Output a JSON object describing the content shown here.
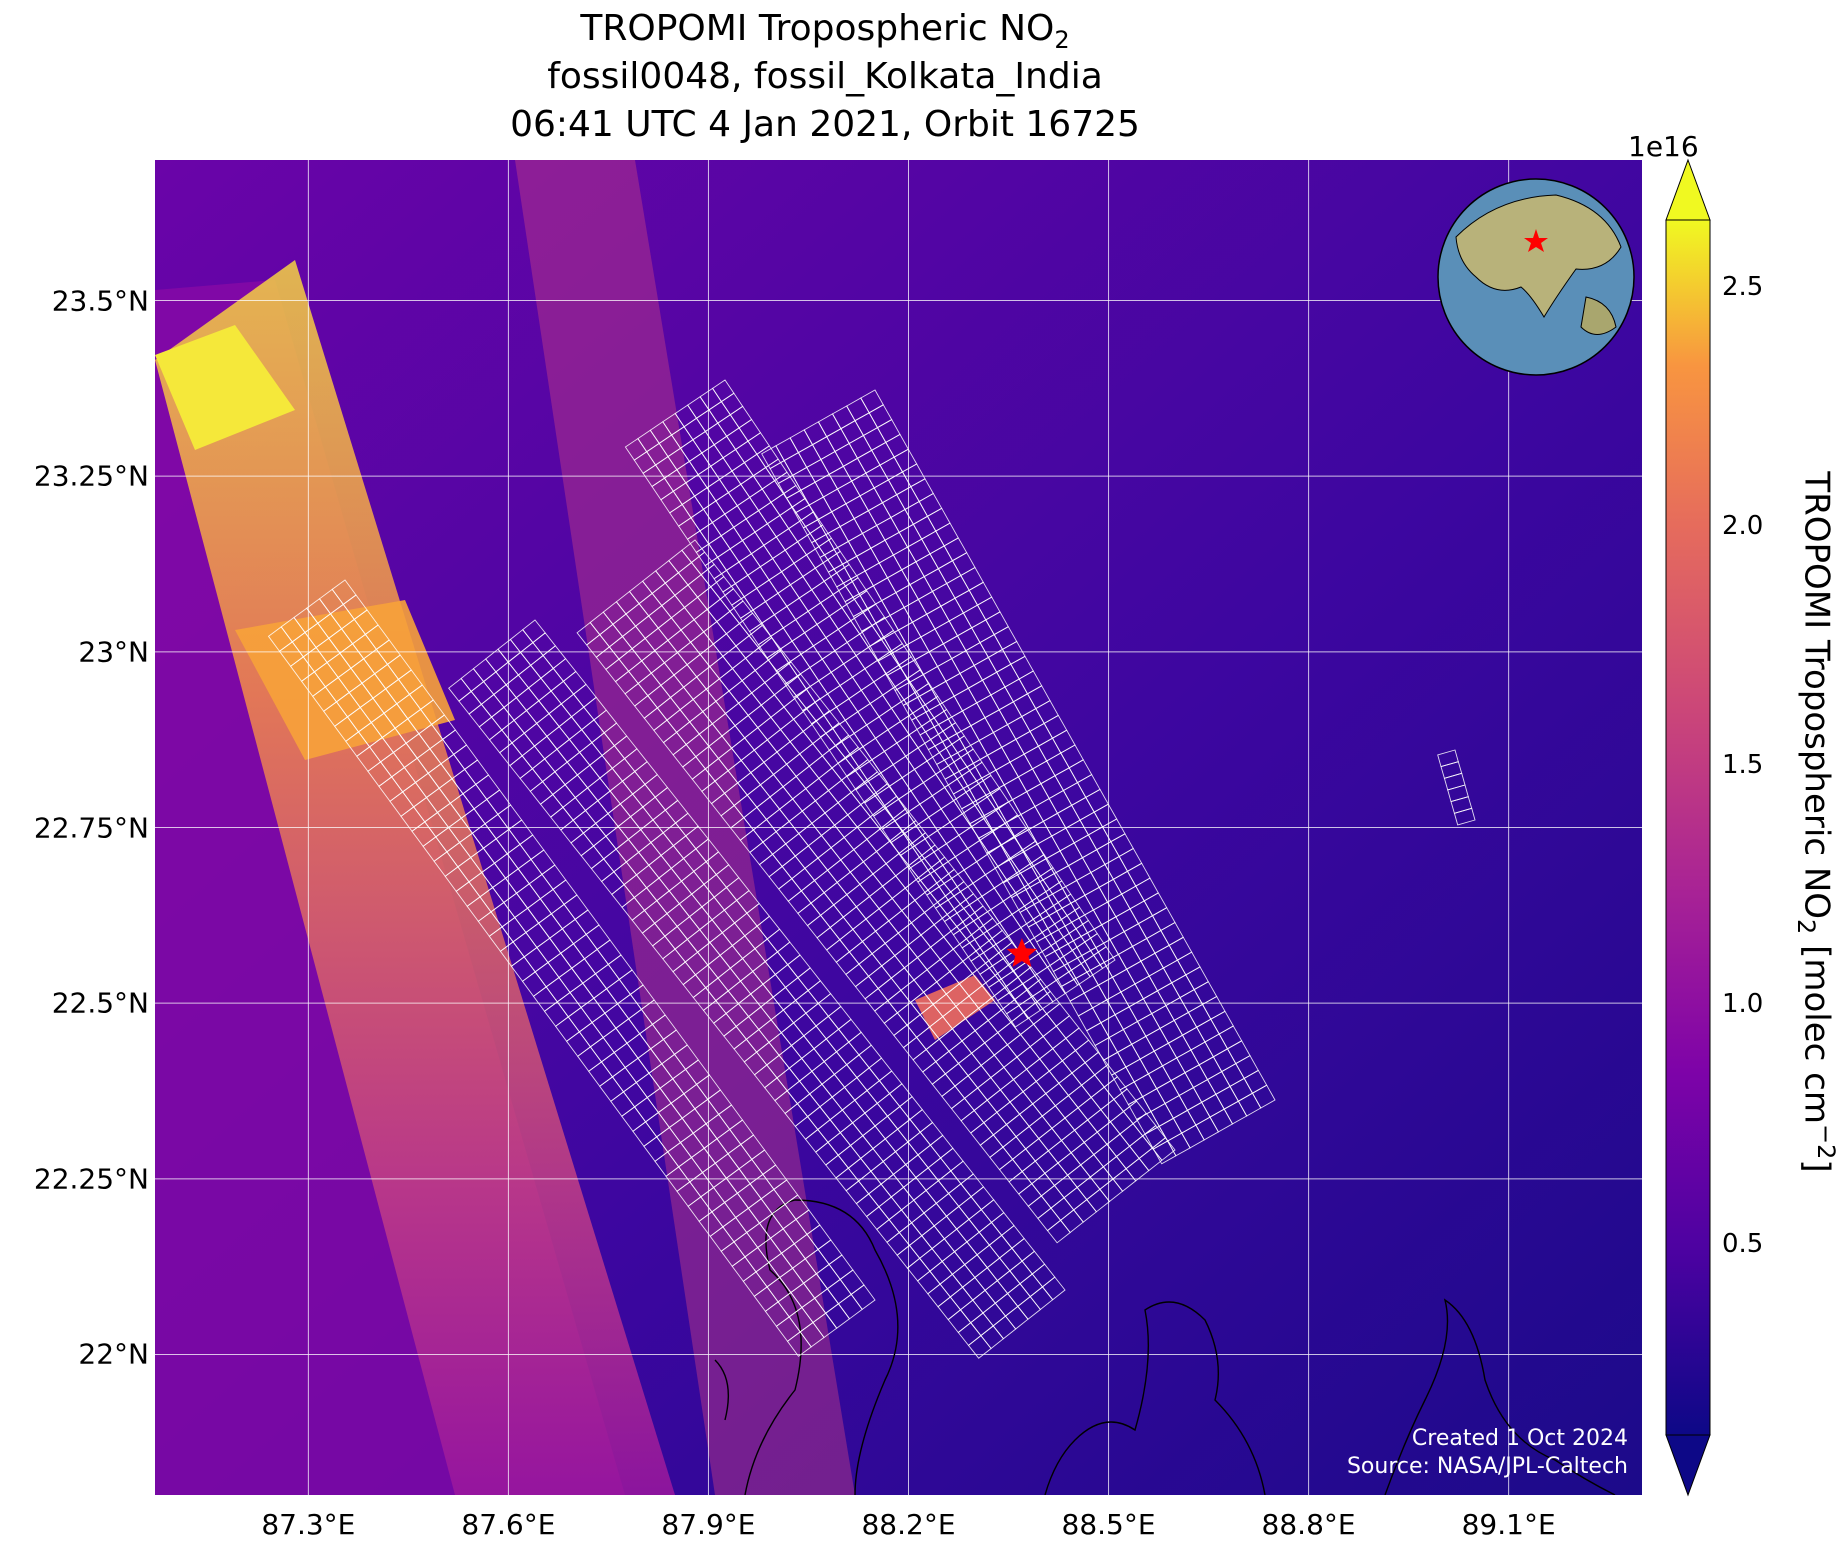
{
  "title": {
    "line1_prefix": "TROPOMI Tropospheric NO",
    "line1_sub": "2",
    "line2": "fossil0048, fossil_Kolkata_India",
    "line3": "06:41 UTC 4 Jan 2021, Orbit 16725"
  },
  "axes": {
    "x_ticks": [
      "87.3°E",
      "87.6°E",
      "87.9°E",
      "88.2°E",
      "88.5°E",
      "88.8°E",
      "89.1°E"
    ],
    "x_values": [
      87.3,
      87.6,
      87.9,
      88.2,
      88.5,
      88.8,
      89.1
    ],
    "y_ticks": [
      "23.5°N",
      "23.25°N",
      "23°N",
      "22.75°N",
      "22.5°N",
      "22.25°N",
      "22°N"
    ],
    "y_values": [
      23.5,
      23.25,
      23.0,
      22.75,
      22.5,
      22.25,
      22.0
    ],
    "lon_range": [
      87.07,
      89.3
    ],
    "lat_range": [
      21.8,
      23.7
    ]
  },
  "colorbar": {
    "exponent": "1e16",
    "ticks": [
      "0.5",
      "1.0",
      "1.5",
      "2.0",
      "2.5"
    ],
    "tick_values": [
      0.5,
      1.0,
      1.5,
      2.0,
      2.5
    ],
    "range": [
      0.1,
      2.64
    ],
    "colormap": "plasma",
    "label_prefix": "TROPOMI Tropospheric NO",
    "label_sub": "2",
    "label_mid": " [molec cm",
    "label_sup": "−2",
    "label_end": "]"
  },
  "target": {
    "name": "fossil_Kolkata_India",
    "lon": 88.37,
    "lat": 22.57,
    "marker_color": "#ff0000"
  },
  "credits": {
    "line1": "Created 1 Oct 2024",
    "line2": "Source: NASA/JPL-Caltech"
  },
  "colors": {
    "grid": "#ffffff",
    "footprint": "#ffffff",
    "coast": "#000000"
  }
}
